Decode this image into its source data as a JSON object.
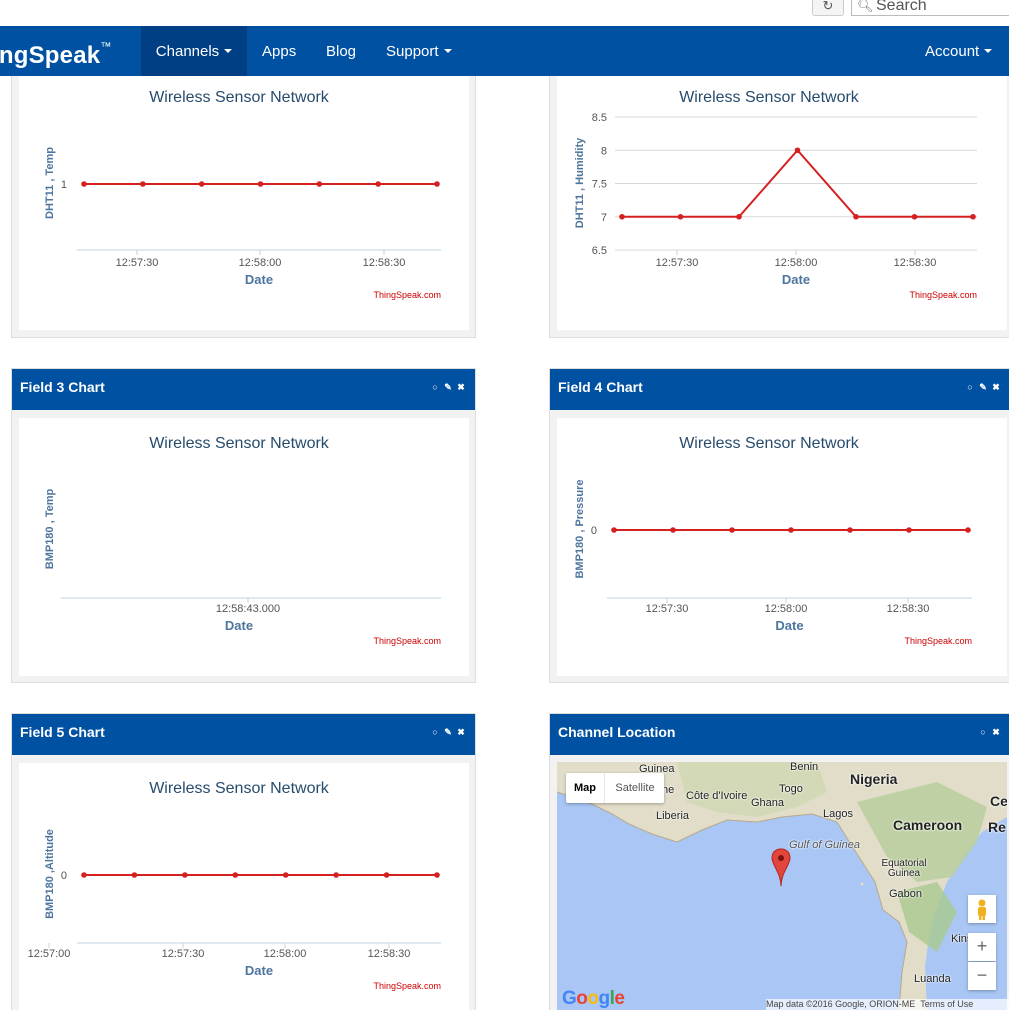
{
  "browser": {
    "reload_icon": "reload-icon",
    "search_placeholder": "Search"
  },
  "navbar": {
    "brand": "ThingSpeak",
    "brand_visible": "ingSpeak",
    "brand_mark": "™",
    "items": [
      {
        "label": "Channels",
        "dropdown": true,
        "active": true
      },
      {
        "label": "Apps",
        "dropdown": false
      },
      {
        "label": "Blog",
        "dropdown": false
      },
      {
        "label": "Support",
        "dropdown": true
      }
    ],
    "account": "Account",
    "color": "#0151a3"
  },
  "panels": {
    "field3": {
      "title": "Field 3 Chart"
    },
    "field4": {
      "title": "Field 4 Chart"
    },
    "field5": {
      "title": "Field 5 Chart"
    },
    "location": {
      "title": "Channel Location"
    }
  },
  "chart_credit": "ThingSpeak.com",
  "chart_data": [
    {
      "id": "field1",
      "type": "line",
      "title": "Wireless Sensor Network",
      "xlabel": "Date",
      "ylabel": "DHT11 , Temp",
      "x_ticks": [
        "12:57:30",
        "12:58:00",
        "12:58:30"
      ],
      "y_ticks": [
        "1"
      ],
      "values": [
        1,
        1,
        1,
        1,
        1,
        1,
        1
      ],
      "color": "#d62020"
    },
    {
      "id": "field2",
      "type": "line",
      "title": "Wireless Sensor Network",
      "xlabel": "Date",
      "ylabel": "DHT11 , Humidity",
      "x_ticks": [
        "12:57:30",
        "12:58:00",
        "12:58:30"
      ],
      "y_ticks": [
        "8.5",
        "8",
        "7.5",
        "7",
        "6.5"
      ],
      "ylim": [
        6.5,
        8.5
      ],
      "values": [
        7,
        7,
        7,
        8,
        7,
        7,
        7
      ],
      "color": "#d62020"
    },
    {
      "id": "field3",
      "type": "line",
      "title": "Wireless Sensor Network",
      "xlabel": "Date",
      "ylabel": "BMP180 , Temp",
      "x_ticks": [
        "12:58:43.000"
      ],
      "y_ticks": [],
      "values": [],
      "color": "#d62020"
    },
    {
      "id": "field4",
      "type": "line",
      "title": "Wireless Sensor Network",
      "xlabel": "Date",
      "ylabel": "BMP180 , Pressure",
      "x_ticks": [
        "12:57:30",
        "12:58:00",
        "12:58:30"
      ],
      "y_ticks": [
        "0"
      ],
      "values": [
        0,
        0,
        0,
        0,
        0,
        0,
        0
      ],
      "color": "#d62020"
    },
    {
      "id": "field5",
      "type": "line",
      "title": "Wireless Sensor Network",
      "xlabel": "Date",
      "ylabel": "BMP180 ,Altitude",
      "x_ticks": [
        "12:57:00",
        "12:57:30",
        "12:58:00",
        "12:58:30"
      ],
      "y_ticks": [
        "0"
      ],
      "values": [
        0,
        0,
        0,
        0,
        0,
        0,
        0,
        0
      ],
      "color": "#d62020"
    }
  ],
  "map": {
    "type_map": "Map",
    "type_satellite": "Satellite",
    "labels": [
      "Guinea",
      "Benin",
      "Nigeria",
      "Côte d'Ivoire",
      "Togo",
      "Ghana",
      "Liberia",
      "Lagos",
      "Cameroon",
      "Gulf of Guinea",
      "Equatorial Guinea",
      "Gabon",
      "Kinshasa",
      "Luanda",
      "Ce",
      "Re",
      "ne"
    ],
    "zoom_in": "+",
    "zoom_out": "−",
    "logo": "Google",
    "attribution": "Map data ©2016 Google, ORION-ME",
    "terms": "Terms of Use"
  }
}
